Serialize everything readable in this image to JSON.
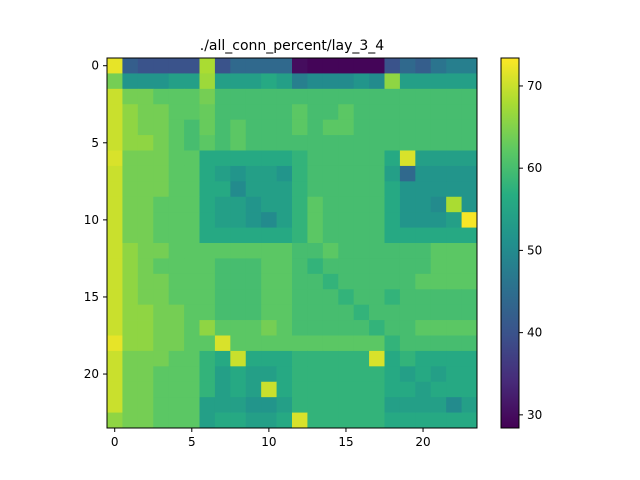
{
  "chart_data": {
    "type": "heatmap",
    "title": "./all_conn_percent/lay_3_4",
    "xlabel": "",
    "ylabel": "",
    "colormap": "viridis",
    "colorbar": {
      "vmin": 28.4,
      "vmax": 73.4,
      "ticks": [
        30,
        40,
        50,
        60,
        70
      ]
    },
    "xticks": [
      0,
      5,
      10,
      15,
      20
    ],
    "yticks": [
      0,
      5,
      10,
      15,
      20
    ],
    "rows": 24,
    "cols": 24,
    "values": [
      [
        72,
        42,
        40,
        40,
        40,
        40,
        68,
        40,
        44,
        44,
        44,
        44,
        30,
        29,
        29,
        29,
        29,
        29,
        40,
        44,
        42,
        46,
        48,
        48
      ],
      [
        64,
        52,
        52,
        52,
        54,
        54,
        67,
        54,
        54,
        54,
        56,
        54,
        48,
        50,
        50,
        50,
        52,
        50,
        66,
        54,
        54,
        54,
        54,
        54
      ],
      [
        70,
        64,
        64,
        62,
        62,
        62,
        64,
        60,
        60,
        60,
        60,
        60,
        60,
        60,
        60,
        60,
        60,
        60,
        60,
        60,
        60,
        60,
        60,
        60
      ],
      [
        70,
        66,
        64,
        64,
        62,
        62,
        63,
        60,
        60,
        60,
        60,
        60,
        62,
        60,
        60,
        62,
        60,
        60,
        60,
        60,
        60,
        60,
        60,
        60
      ],
      [
        70,
        66,
        64,
        64,
        62,
        60,
        63,
        60,
        62,
        60,
        60,
        60,
        62,
        60,
        62,
        62,
        60,
        60,
        60,
        60,
        60,
        60,
        60,
        60
      ],
      [
        70,
        66,
        66,
        64,
        62,
        60,
        62,
        60,
        62,
        60,
        60,
        60,
        60,
        60,
        60,
        60,
        60,
        60,
        60,
        60,
        60,
        60,
        60,
        60
      ],
      [
        71,
        64,
        64,
        64,
        62,
        62,
        56,
        56,
        56,
        56,
        56,
        56,
        58,
        60,
        60,
        60,
        60,
        60,
        56,
        71,
        54,
        54,
        54,
        54
      ],
      [
        70,
        64,
        64,
        64,
        62,
        62,
        56,
        54,
        52,
        54,
        54,
        52,
        58,
        60,
        60,
        60,
        60,
        60,
        54,
        44,
        52,
        52,
        52,
        52
      ],
      [
        70,
        64,
        64,
        64,
        62,
        62,
        56,
        56,
        50,
        54,
        54,
        54,
        58,
        60,
        60,
        60,
        60,
        60,
        56,
        52,
        52,
        52,
        52,
        52
      ],
      [
        70,
        64,
        64,
        62,
        62,
        62,
        56,
        54,
        54,
        52,
        54,
        54,
        58,
        62,
        60,
        60,
        60,
        60,
        56,
        52,
        52,
        50,
        68,
        52
      ],
      [
        70,
        64,
        64,
        62,
        62,
        62,
        56,
        54,
        54,
        52,
        50,
        54,
        58,
        62,
        60,
        60,
        60,
        60,
        56,
        52,
        52,
        52,
        54,
        73
      ],
      [
        70,
        64,
        64,
        62,
        62,
        62,
        56,
        56,
        56,
        56,
        56,
        56,
        58,
        62,
        60,
        60,
        60,
        60,
        56,
        56,
        56,
        56,
        56,
        56
      ],
      [
        70,
        66,
        64,
        64,
        62,
        62,
        62,
        62,
        62,
        62,
        62,
        62,
        60,
        60,
        62,
        60,
        60,
        60,
        60,
        60,
        60,
        62,
        62,
        62
      ],
      [
        70,
        66,
        64,
        62,
        62,
        62,
        62,
        60,
        60,
        60,
        62,
        62,
        60,
        58,
        60,
        60,
        60,
        60,
        60,
        60,
        60,
        62,
        62,
        62
      ],
      [
        70,
        66,
        64,
        64,
        62,
        62,
        62,
        60,
        60,
        60,
        62,
        62,
        60,
        60,
        58,
        60,
        60,
        60,
        60,
        60,
        62,
        62,
        62,
        62
      ],
      [
        70,
        66,
        64,
        64,
        62,
        62,
        62,
        60,
        60,
        60,
        62,
        62,
        60,
        60,
        60,
        58,
        60,
        60,
        58,
        60,
        60,
        60,
        60,
        60
      ],
      [
        70,
        66,
        66,
        64,
        64,
        62,
        62,
        60,
        60,
        60,
        62,
        62,
        60,
        60,
        60,
        60,
        58,
        60,
        60,
        60,
        60,
        60,
        60,
        60
      ],
      [
        70,
        66,
        66,
        64,
        64,
        62,
        66,
        62,
        62,
        62,
        64,
        62,
        60,
        60,
        60,
        60,
        60,
        58,
        60,
        60,
        62,
        62,
        62,
        62
      ],
      [
        72,
        66,
        66,
        64,
        64,
        62,
        62,
        71,
        62,
        62,
        62,
        62,
        62,
        62,
        62,
        62,
        62,
        62,
        58,
        60,
        60,
        60,
        60,
        60
      ],
      [
        70,
        64,
        64,
        64,
        62,
        62,
        58,
        56,
        70,
        56,
        56,
        56,
        58,
        58,
        58,
        58,
        58,
        71,
        56,
        58,
        56,
        56,
        56,
        56
      ],
      [
        70,
        64,
        64,
        62,
        62,
        62,
        58,
        54,
        56,
        54,
        54,
        56,
        58,
        58,
        58,
        58,
        58,
        58,
        56,
        54,
        56,
        54,
        56,
        56
      ],
      [
        70,
        64,
        64,
        62,
        62,
        62,
        58,
        54,
        56,
        54,
        70,
        56,
        58,
        58,
        58,
        58,
        58,
        58,
        56,
        56,
        54,
        56,
        56,
        56
      ],
      [
        70,
        64,
        64,
        62,
        62,
        62,
        54,
        54,
        54,
        52,
        52,
        54,
        58,
        58,
        58,
        58,
        58,
        58,
        54,
        54,
        54,
        54,
        50,
        54
      ],
      [
        66,
        64,
        64,
        62,
        62,
        62,
        54,
        56,
        56,
        54,
        54,
        56,
        71,
        58,
        58,
        58,
        58,
        58,
        56,
        56,
        56,
        56,
        56,
        56
      ]
    ]
  }
}
